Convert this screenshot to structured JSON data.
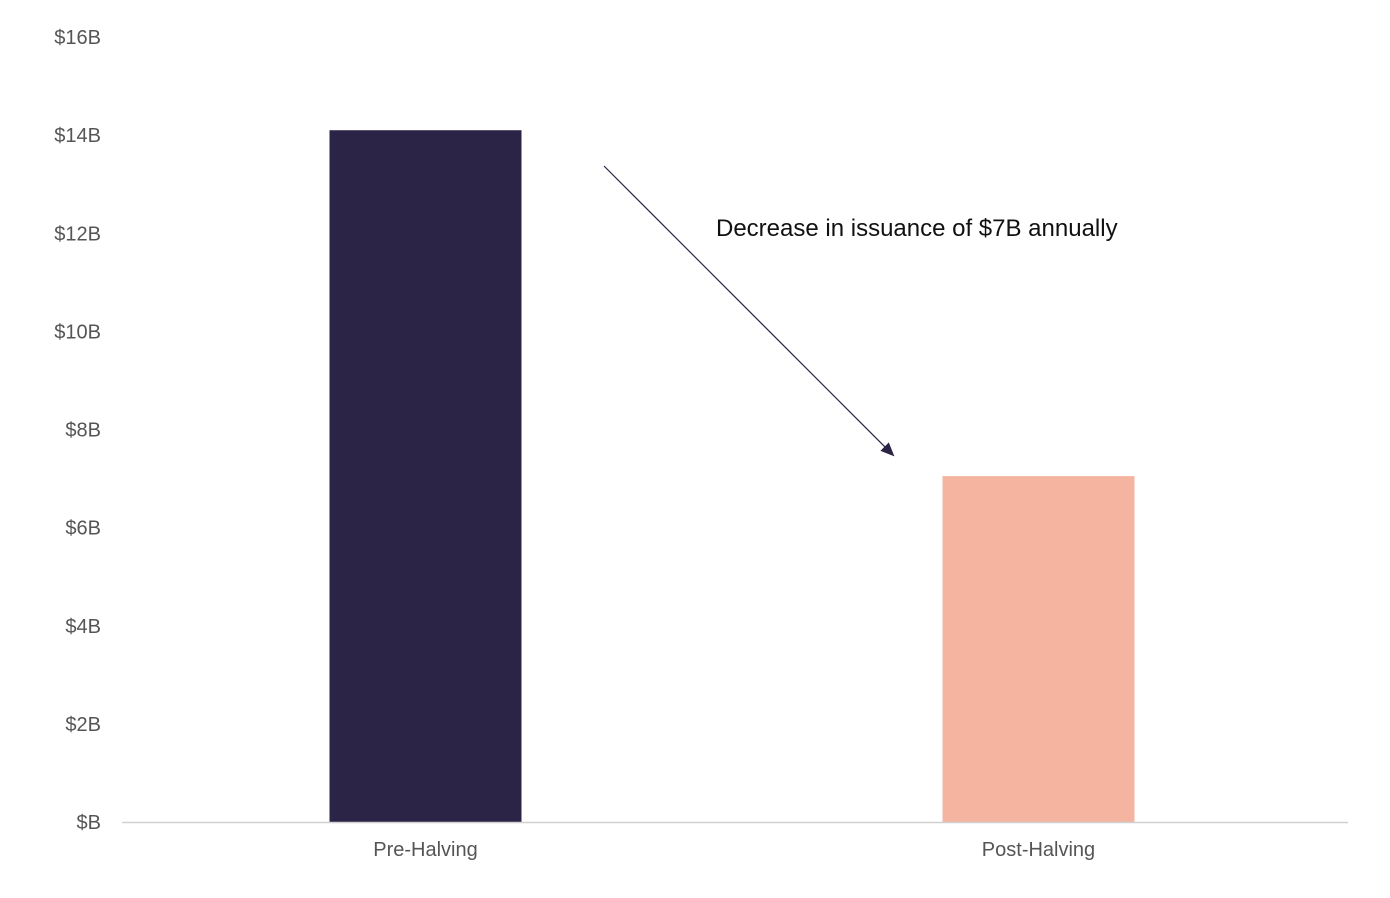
{
  "chart_data": {
    "type": "bar",
    "title": "",
    "xlabel": "",
    "ylabel": "",
    "categories": [
      "Pre-Halving",
      "Post-Halving"
    ],
    "values": [
      14.1,
      7.05
    ],
    "ylim": [
      0,
      16
    ],
    "yticks": [
      0,
      2,
      4,
      6,
      8,
      10,
      12,
      14,
      16
    ],
    "ytick_labels": [
      "$B",
      "$2B",
      "$4B",
      "$6B",
      "$8B",
      "$10B",
      "$12B",
      "$14B",
      "$16B"
    ],
    "colors": [
      "#2c2447",
      "#f4b4a0"
    ],
    "grid": false,
    "legend": "none",
    "annotation": {
      "text": "Decrease in issuance of $7B annually",
      "arrow": "from top of Pre-Halving bar toward Post-Halving bar"
    }
  }
}
